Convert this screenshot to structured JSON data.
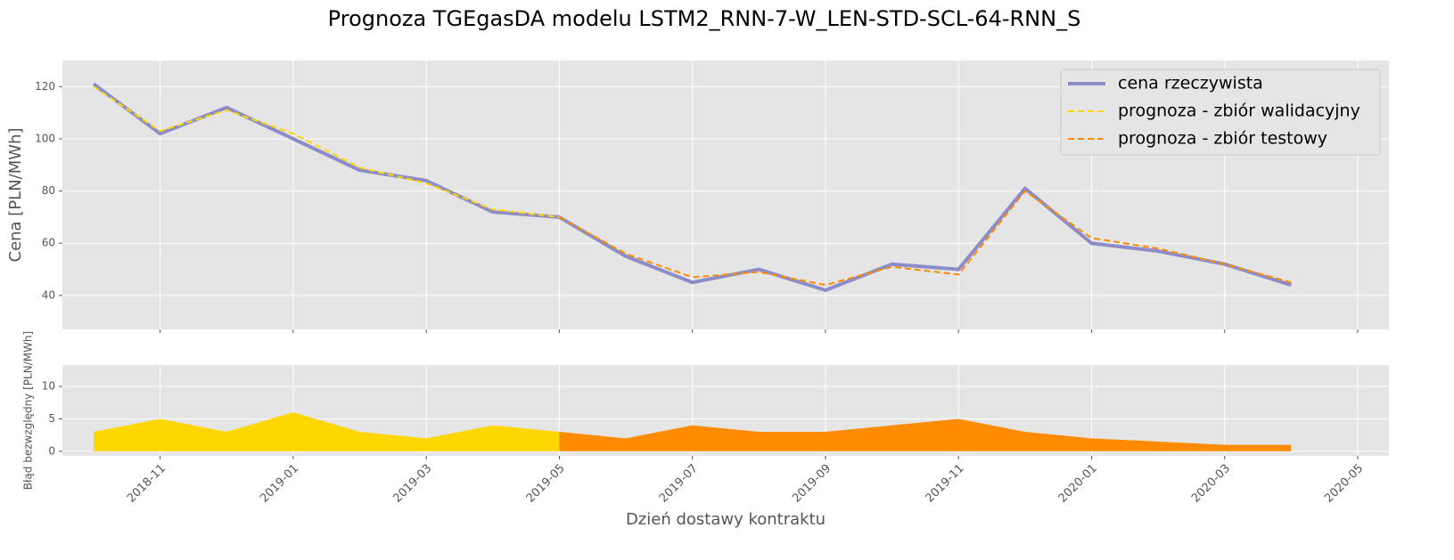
{
  "chart_data": [
    {
      "type": "line",
      "title": "Prognoza TGEgasDA modelu LSTM2_RNN-7-W_LEN-STD-SCL-64-RNN_S",
      "ylabel": "Cena [PLN/MWh]",
      "x": [
        "2018-10",
        "2018-11",
        "2018-12",
        "2019-01",
        "2019-02",
        "2019-03",
        "2019-04",
        "2019-05",
        "2019-06",
        "2019-07",
        "2019-08",
        "2019-09",
        "2019-10",
        "2019-11",
        "2019-12",
        "2020-01",
        "2020-02",
        "2020-03",
        "2020-04"
      ],
      "series": [
        {
          "name": "cena rzeczywista",
          "color": "#8c8cc8",
          "linestyle": "solid",
          "linewidth": 4,
          "values": [
            121,
            102,
            112,
            100,
            88,
            84,
            72,
            70,
            55,
            45,
            50,
            42,
            52,
            50,
            81,
            60,
            57,
            52,
            44
          ]
        },
        {
          "name": "prognoza - zbiór walidacyjny",
          "color": "#ffd700",
          "linestyle": "dashed",
          "linewidth": 2,
          "values": [
            120,
            103,
            111,
            102,
            89,
            83,
            73,
            70,
            null,
            null,
            null,
            null,
            null,
            null,
            null,
            null,
            null,
            null,
            null
          ]
        },
        {
          "name": "prognoza - zbiór testowy",
          "color": "#ff8c00",
          "linestyle": "dashed",
          "linewidth": 2,
          "values": [
            null,
            null,
            null,
            null,
            null,
            null,
            null,
            70,
            56,
            47,
            49,
            44,
            51,
            48,
            80,
            62,
            58,
            52,
            45
          ]
        }
      ],
      "xlim": [
        "2018-10",
        "2020-05"
      ],
      "xticks": [
        "2018-11",
        "2019-01",
        "2019-03",
        "2019-05",
        "2019-07",
        "2019-09",
        "2019-11",
        "2020-01",
        "2020-03",
        "2020-05"
      ],
      "ylim": [
        27,
        130
      ],
      "yticks": [
        40,
        60,
        80,
        100,
        120
      ],
      "grid": true,
      "legend": "upper right"
    },
    {
      "type": "area",
      "ylabel": "Błąd bezwzględny [PLN/MWh]",
      "xlabel": "Dzień dostawy kontraktu",
      "x": [
        "2018-10",
        "2018-11",
        "2018-12",
        "2019-01",
        "2019-02",
        "2019-03",
        "2019-04",
        "2019-05",
        "2019-06",
        "2019-07",
        "2019-08",
        "2019-09",
        "2019-10",
        "2019-11",
        "2019-12",
        "2020-01",
        "2020-02",
        "2020-03",
        "2020-04"
      ],
      "series": [
        {
          "color": "#ffd700",
          "values": [
            3,
            5,
            3,
            6,
            3,
            2,
            4,
            3,
            null,
            null,
            null,
            null,
            null,
            null,
            null,
            null,
            null,
            null,
            null
          ]
        },
        {
          "color": "#ff8c00",
          "values": [
            null,
            null,
            null,
            null,
            null,
            null,
            null,
            3,
            2,
            4,
            3,
            3,
            4,
            5,
            3,
            2,
            1.5,
            1,
            1
          ]
        }
      ],
      "xlim": [
        "2018-10",
        "2020-05"
      ],
      "xticks": [
        "2018-11",
        "2019-01",
        "2019-03",
        "2019-05",
        "2019-07",
        "2019-09",
        "2019-11",
        "2020-01",
        "2020-03",
        "2020-05"
      ],
      "ylim": [
        -0.7,
        13.3
      ],
      "yticks": [
        0,
        5,
        10
      ],
      "grid": true
    }
  ]
}
